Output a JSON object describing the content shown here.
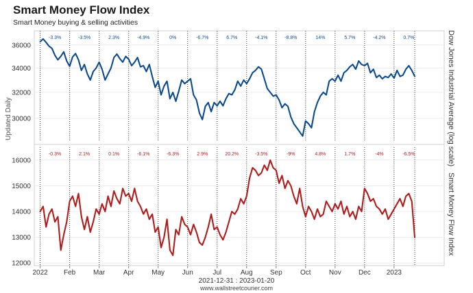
{
  "title": "Smart Money Flow Index",
  "subtitle": "Smart Money buying & selling activities",
  "updated_label": "Updated Daily",
  "date_range": "2021-12-31 : 2023-01-20",
  "source": "www.wallstreetcourier.com",
  "colors": {
    "top_series": "#0d4a8c",
    "bottom_series": "#b01c1c",
    "grid": "#ececec",
    "divider": "#333333"
  },
  "chart_data": [
    {
      "type": "line",
      "name": "Dow Jones Industrial Average",
      "ylabel": "Dow Jones Industrial Average (log scale)",
      "ylim": [
        28300,
        37300
      ],
      "yticks": [
        30000,
        32000,
        34000,
        36000
      ],
      "ytick_labels": [
        "30000",
        "32000",
        "34000",
        "36000"
      ],
      "xlim": [
        -0.2,
        13.7
      ],
      "xticks": [
        0,
        1,
        2,
        3,
        4,
        5,
        6,
        7,
        8,
        9,
        10,
        11,
        12
      ],
      "xtick_labels": [
        "2022",
        "Feb",
        "Mar",
        "Apr",
        "May",
        "Jun",
        "Jul",
        "Aug",
        "Sep",
        "Oct",
        "Nov",
        "Dec",
        "2023"
      ],
      "month_changes": [
        "-3.3%",
        "-3.5%",
        "2.3%",
        "-4.9%",
        "0%",
        "-6.7%",
        "6.7%",
        "-4.1%",
        "-8.8%",
        "14%",
        "5.7%",
        "-4.2%",
        "0.7%"
      ],
      "x": [
        0,
        0.1,
        0.2,
        0.3,
        0.4,
        0.5,
        0.6,
        0.7,
        0.8,
        0.9,
        1.0,
        1.1,
        1.2,
        1.3,
        1.4,
        1.5,
        1.6,
        1.7,
        1.8,
        1.9,
        2.0,
        2.1,
        2.2,
        2.3,
        2.4,
        2.5,
        2.6,
        2.7,
        2.8,
        2.9,
        3.0,
        3.1,
        3.2,
        3.3,
        3.4,
        3.5,
        3.6,
        3.7,
        3.8,
        3.9,
        4.0,
        4.1,
        4.2,
        4.3,
        4.4,
        4.5,
        4.6,
        4.7,
        4.8,
        4.9,
        5.0,
        5.1,
        5.2,
        5.3,
        5.4,
        5.5,
        5.6,
        5.7,
        5.8,
        5.9,
        6.0,
        6.1,
        6.2,
        6.3,
        6.4,
        6.5,
        6.6,
        6.7,
        6.8,
        6.9,
        7.0,
        7.1,
        7.2,
        7.3,
        7.4,
        7.5,
        7.6,
        7.7,
        7.8,
        7.9,
        8.0,
        8.1,
        8.2,
        8.3,
        8.4,
        8.5,
        8.6,
        8.7,
        8.8,
        8.9,
        9.0,
        9.1,
        9.2,
        9.3,
        9.4,
        9.5,
        9.6,
        9.7,
        9.8,
        9.9,
        10.0,
        10.1,
        10.2,
        10.3,
        10.4,
        10.5,
        10.6,
        10.7,
        10.8,
        10.9,
        11.0,
        11.1,
        11.2,
        11.3,
        11.4,
        11.5,
        11.6,
        11.7,
        11.8,
        11.9,
        12.0,
        12.1,
        12.2,
        12.3,
        12.4,
        12.5,
        12.6,
        12.7
      ],
      "values": [
        36300,
        36550,
        36250,
        35900,
        35700,
        35100,
        34700,
        35000,
        35400,
        34600,
        34150,
        34950,
        35250,
        34700,
        33800,
        34300,
        33500,
        33000,
        33700,
        34000,
        34500,
        33900,
        33000,
        33500,
        34000,
        34900,
        35200,
        34800,
        34500,
        35000,
        34750,
        34200,
        34500,
        34900,
        34100,
        34200,
        33700,
        34300,
        33300,
        32400,
        32900,
        31800,
        32500,
        32900,
        31500,
        32000,
        31300,
        32100,
        33000,
        32700,
        32900,
        33100,
        31800,
        31400,
        30400,
        29900,
        30900,
        31200,
        30500,
        31200,
        30950,
        31300,
        30950,
        31500,
        31900,
        31800,
        32200,
        32900,
        32500,
        33000,
        32700,
        33100,
        33600,
        33800,
        34100,
        33900,
        33100,
        32300,
        32000,
        31700,
        31800,
        31400,
        30800,
        31100,
        30900,
        30100,
        29600,
        29300,
        29000,
        28700,
        29800,
        29600,
        29300,
        30500,
        31200,
        31700,
        32000,
        31800,
        32900,
        33100,
        32900,
        33400,
        32900,
        33600,
        33800,
        34100,
        34300,
        33900,
        34600,
        34300,
        34200,
        34400,
        33600,
        33900,
        33200,
        33400,
        33100,
        33300,
        33200,
        33500,
        33150,
        33800,
        33300,
        33400,
        33900,
        34200,
        33800,
        33300
      ]
    },
    {
      "type": "line",
      "name": "Smart Money Flow Index",
      "ylabel": "Smart Money Flow Index",
      "ylim": [
        11900,
        16500
      ],
      "yticks": [
        12000,
        13000,
        14000,
        15000,
        16000
      ],
      "ytick_labels": [
        "12000",
        "13000",
        "14000",
        "15000",
        "16000"
      ],
      "xlim": [
        -0.2,
        13.7
      ],
      "xticks": [
        0,
        1,
        2,
        3,
        4,
        5,
        6,
        7,
        8,
        9,
        10,
        11,
        12
      ],
      "xtick_labels": [
        "2022",
        "Feb",
        "Mar",
        "Apr",
        "May",
        "Jun",
        "Jul",
        "Aug",
        "Sep",
        "Oct",
        "Nov",
        "Dec",
        "2023"
      ],
      "month_changes": [
        "-0.3%",
        "2.1%",
        "0.1%",
        "-6.1%",
        "-6.3%",
        "2.9%",
        "20.2%",
        "-3.5%",
        "-9%",
        "4.8%",
        "1.7%",
        "-4%",
        "-6.5%"
      ],
      "x": [
        0,
        0.1,
        0.2,
        0.3,
        0.4,
        0.5,
        0.6,
        0.7,
        0.8,
        0.9,
        1.0,
        1.1,
        1.2,
        1.3,
        1.4,
        1.5,
        1.6,
        1.7,
        1.8,
        1.9,
        2.0,
        2.1,
        2.2,
        2.3,
        2.4,
        2.5,
        2.6,
        2.7,
        2.8,
        2.9,
        3.0,
        3.1,
        3.2,
        3.3,
        3.4,
        3.5,
        3.6,
        3.7,
        3.8,
        3.9,
        4.0,
        4.1,
        4.2,
        4.3,
        4.4,
        4.5,
        4.6,
        4.7,
        4.8,
        4.9,
        5.0,
        5.1,
        5.2,
        5.3,
        5.4,
        5.5,
        5.6,
        5.7,
        5.8,
        5.9,
        6.0,
        6.1,
        6.2,
        6.3,
        6.4,
        6.5,
        6.6,
        6.7,
        6.8,
        6.9,
        7.0,
        7.1,
        7.2,
        7.3,
        7.4,
        7.5,
        7.6,
        7.7,
        7.8,
        7.9,
        8.0,
        8.1,
        8.2,
        8.3,
        8.4,
        8.5,
        8.6,
        8.7,
        8.8,
        8.9,
        9.0,
        9.1,
        9.2,
        9.3,
        9.4,
        9.5,
        9.6,
        9.7,
        9.8,
        9.9,
        10.0,
        10.1,
        10.2,
        10.3,
        10.4,
        10.5,
        10.6,
        10.7,
        10.8,
        10.9,
        11.0,
        11.1,
        11.2,
        11.3,
        11.4,
        11.5,
        11.6,
        11.7,
        11.8,
        11.9,
        12.0,
        12.1,
        12.2,
        12.3,
        12.4,
        12.5,
        12.6,
        12.7
      ],
      "values": [
        14000,
        14200,
        13400,
        13900,
        14100,
        13600,
        13800,
        12500,
        13100,
        13600,
        14400,
        14600,
        14200,
        14700,
        13800,
        13300,
        13800,
        13200,
        13600,
        14100,
        13900,
        14300,
        14000,
        14600,
        14200,
        14800,
        14500,
        14300,
        14900,
        14600,
        14700,
        14400,
        14900,
        14400,
        14200,
        13900,
        14100,
        13700,
        13900,
        13200,
        13400,
        12600,
        13000,
        13700,
        12500,
        12300,
        13300,
        13100,
        13800,
        13500,
        13400,
        13100,
        13500,
        13200,
        12800,
        12700,
        13000,
        13400,
        13900,
        13300,
        13400,
        13100,
        12900,
        13200,
        13600,
        14000,
        13900,
        14100,
        14500,
        14300,
        14600,
        15300,
        15700,
        15600,
        15400,
        15500,
        15800,
        15600,
        16000,
        15700,
        15600,
        15100,
        15400,
        14900,
        15200,
        15000,
        14600,
        14300,
        14900,
        14200,
        13800,
        14200,
        14000,
        13700,
        14100,
        13800,
        13900,
        14400,
        14200,
        14000,
        14300,
        14100,
        14400,
        13900,
        14200,
        13800,
        14000,
        13700,
        14200,
        14000,
        14900,
        14700,
        14400,
        14500,
        14200,
        14100,
        13900,
        14100,
        13700,
        13900,
        14100,
        14300,
        14500,
        14200,
        14600,
        14700,
        14400,
        13000
      ]
    }
  ]
}
